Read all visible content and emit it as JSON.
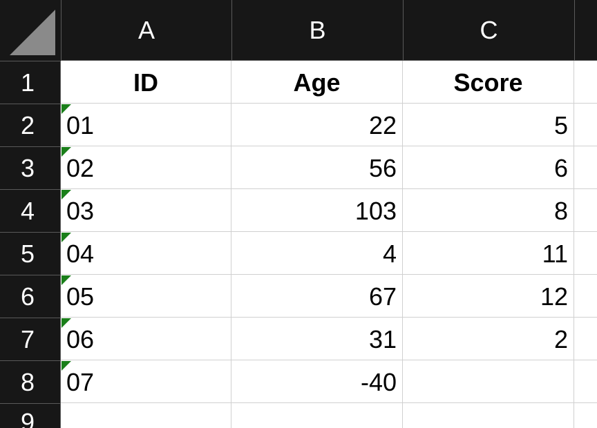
{
  "columns": [
    "A",
    "B",
    "C"
  ],
  "rows": [
    "1",
    "2",
    "3",
    "4",
    "5",
    "6",
    "7",
    "8",
    "9"
  ],
  "header_row": {
    "a": "ID",
    "b": "Age",
    "c": "Score"
  },
  "data_rows": [
    {
      "a": "01",
      "b": "22",
      "c": "5"
    },
    {
      "a": "02",
      "b": "56",
      "c": "6"
    },
    {
      "a": "03",
      "b": "103",
      "c": "8"
    },
    {
      "a": "04",
      "b": "4",
      "c": "11"
    },
    {
      "a": "05",
      "b": "67",
      "c": "12"
    },
    {
      "a": "06",
      "b": "31",
      "c": "2"
    },
    {
      "a": "07",
      "b": "-40",
      "c": ""
    }
  ],
  "colors": {
    "header_bg": "#171717",
    "header_text": "#ffffff",
    "gridline": "#d0d0d0",
    "error_flag": "#1a7f1a"
  },
  "icons": {
    "select_all": "select-all-triangle-icon",
    "number_as_text_flag": "green-triangle-error-indicator-icon"
  }
}
